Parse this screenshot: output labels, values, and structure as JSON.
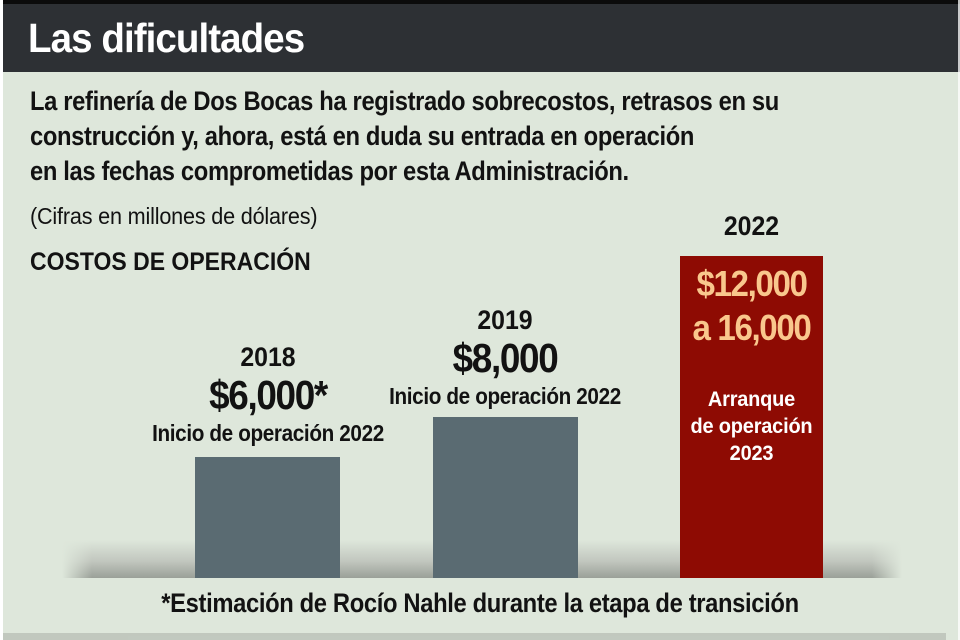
{
  "colors": {
    "bg": "#dee7db",
    "top_line": "#0b0b0b",
    "header_bg": "#2d3034",
    "header_text": "#ffffff",
    "ink": "#121212",
    "bar_gray": "#5a6b72",
    "bar_red": "#8e0b03",
    "value_peach": "#f9c78d",
    "bar_text_white": "#ffffff"
  },
  "header": {
    "title": "Las dificultades"
  },
  "intro": {
    "lines": [
      "La refinería de Dos Bocas ha registrado sobrecostos, retrasos en su",
      "construcción y, ahora, está en duda su entrada en operación",
      "en las fechas comprometidas por esta Administración."
    ]
  },
  "chart_data": {
    "type": "bar",
    "title": "COSTOS DE OPERACIÓN",
    "units_note": "(Cifras en millones de dólares)",
    "unit": "millones de dólares",
    "categories": [
      "2018",
      "2019",
      "2022"
    ],
    "values": [
      6000,
      8000,
      16000
    ],
    "legend": "none",
    "grid": false,
    "bars": [
      {
        "year": "2018",
        "value": 6000,
        "value_label": "$6,000*",
        "sub_label": "Inicio de operación 2022",
        "color": "#5a6b72"
      },
      {
        "year": "2019",
        "value": 8000,
        "value_label": "$8,000",
        "sub_label": "Inicio de operación 2022",
        "color": "#5a6b72"
      },
      {
        "year": "2022",
        "value": 16000,
        "value_min": 12000,
        "value_max": 16000,
        "value_label": "$12,000 a 16,000",
        "value_lines": [
          "$12,000",
          "a 16,000"
        ],
        "sub_lines": [
          "Arranque",
          "de operación",
          "2023"
        ],
        "color": "#8e0b03"
      }
    ]
  },
  "footnote": "*Estimación de Rocío Nahle durante la etapa de transición"
}
